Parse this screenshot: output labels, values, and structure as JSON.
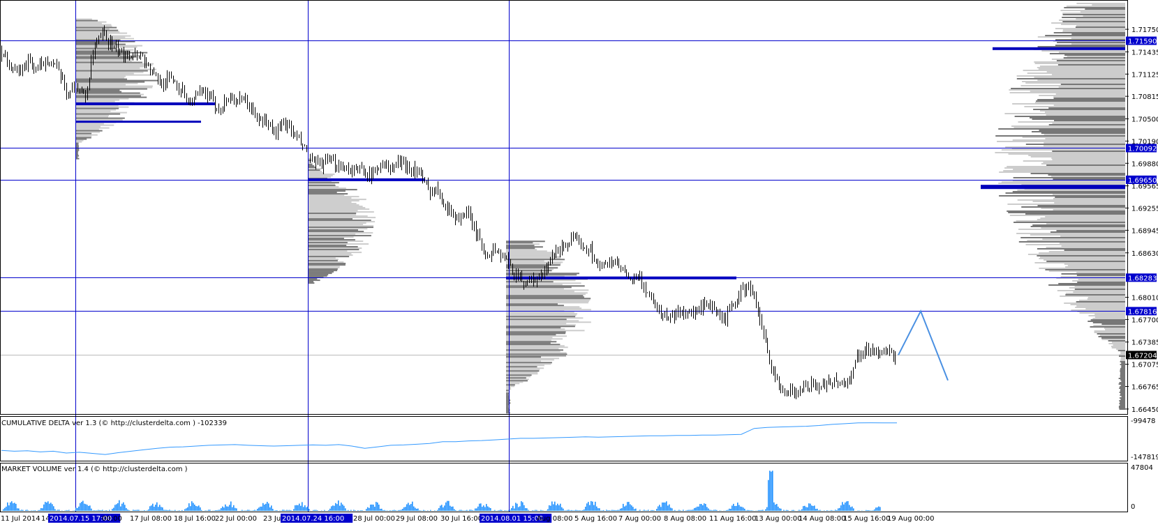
{
  "chart_data": [
    {
      "type": "candlestick",
      "name": "price",
      "yaxis": {
        "ticks": [
          1.7175,
          1.71435,
          1.71125,
          1.70815,
          1.705,
          1.7019,
          1.6988,
          1.69565,
          1.69255,
          1.68945,
          1.6863,
          1.6801,
          1.677,
          1.67385,
          1.67075,
          1.66765,
          1.6645
        ],
        "tick_labels": [
          "1.71750",
          "1.71435",
          "1.71125",
          "1.70815",
          "1.70500",
          "1.70190",
          "1.69880",
          "1.69565",
          "1.69255",
          "1.68945",
          "1.68630",
          "1.68010",
          "1.67700",
          "1.67385",
          "1.67075",
          "1.66765",
          "1.66450"
        ],
        "range": [
          1.664,
          1.7212
        ]
      },
      "level_lines": [
        {
          "value": 1.7159,
          "label": "1.71590"
        },
        {
          "value": 1.70092,
          "label": "1.70092"
        },
        {
          "value": 1.6965,
          "label": "1.69650"
        },
        {
          "value": 1.68283,
          "label": "1.68283"
        },
        {
          "value": 1.67816,
          "label": "1.67816"
        }
      ],
      "current_price": {
        "value": 1.67204,
        "label": "1.67204"
      },
      "price_path": [
        1.7146,
        1.7128,
        1.7112,
        1.713,
        1.7118,
        1.7135,
        1.7121,
        1.7087,
        1.7095,
        1.708,
        1.7155,
        1.7168,
        1.7147,
        1.714,
        1.7142,
        1.7137,
        1.7113,
        1.71,
        1.7108,
        1.7092,
        1.7072,
        1.7085,
        1.7081,
        1.7063,
        1.708,
        1.7076,
        1.7072,
        1.705,
        1.7046,
        1.703,
        1.7045,
        1.7025,
        1.7009,
        1.6985,
        1.6988,
        1.6988,
        1.6985,
        1.6978,
        1.698,
        1.697,
        1.6988,
        1.698,
        1.699,
        1.6982,
        1.6975,
        1.695,
        1.6952,
        1.6925,
        1.691,
        1.692,
        1.689,
        1.686,
        1.6868,
        1.6855,
        1.6835,
        1.6823,
        1.6825,
        1.683,
        1.6858,
        1.6872,
        1.688,
        1.6875,
        1.6868,
        1.684,
        1.6852,
        1.6845,
        1.6825,
        1.6828,
        1.6808,
        1.6788,
        1.6772,
        1.6778,
        1.6782,
        1.6778,
        1.679,
        1.6782,
        1.677,
        1.679,
        1.6812,
        1.6812,
        1.676,
        1.6696,
        1.6676,
        1.667,
        1.6672,
        1.668,
        1.6675,
        1.6685,
        1.6683,
        1.668,
        1.672,
        1.6728,
        1.6726,
        1.6722,
        1.672
      ],
      "projection": [
        1.67204,
        1.67816,
        1.6685
      ],
      "session_lines_x": [
        "2014.07.15 17:00",
        "2014.07.24 16:00",
        "2014.08.01 15:00"
      ]
    },
    {
      "type": "line",
      "title": "CUMULATIVE DELTA ver 1.3 (© http://clusterdelta.com ) -102339",
      "yaxis": {
        "tick_labels": [
          "-99478",
          "-147819"
        ],
        "range": [
          -153000,
          -96000
        ]
      },
      "values": [
        -140000,
        -141000,
        -140500,
        -142000,
        -141000,
        -143500,
        -142500,
        -144000,
        -145500,
        -143000,
        -141000,
        -139000,
        -137000,
        -135500,
        -135000,
        -134000,
        -133000,
        -132500,
        -132000,
        -133000,
        -133500,
        -134000,
        -133500,
        -133000,
        -132500,
        -133000,
        -132000,
        -134000,
        -137000,
        -135000,
        -133000,
        -132500,
        -131500,
        -130500,
        -128000,
        -128000,
        -127000,
        -126500,
        -125500,
        -124500,
        -123500,
        -123500,
        -123000,
        -122500,
        -122000,
        -121500,
        -121800,
        -121500,
        -121000,
        -120500,
        -120000,
        -120000,
        -119500,
        -119500,
        -119000,
        -119000,
        -118500,
        -118000,
        -110000,
        -108500,
        -108000,
        -107500,
        -107000,
        -106000,
        -104500,
        -103500,
        -102500,
        -102300,
        -102500,
        -102339
      ]
    },
    {
      "type": "bar",
      "title": "MARKET VOLUME ver 1.4 (© http://clusterdelta.com )",
      "yaxis": {
        "tick_labels": [
          "47804",
          "0"
        ],
        "range": [
          0,
          47804
        ]
      },
      "series_color": "#1e90ff"
    }
  ],
  "x_axis": {
    "ticks": [
      {
        "label": "11 Jul 2014",
        "highlight": false
      },
      {
        "label": "14",
        "highlight": false
      },
      {
        "label": "2014.07.15 17:00",
        "highlight": true
      },
      {
        "label": "00:00",
        "highlight": false
      },
      {
        "label": "17 Jul 08:00",
        "highlight": false
      },
      {
        "label": "18 Jul 16:00",
        "highlight": false
      },
      {
        "label": "22 Jul 00:00",
        "highlight": false
      },
      {
        "label": "23 Jul",
        "highlight": false
      },
      {
        "label": "2014.07.24 16:00",
        "highlight": true
      },
      {
        "label": "28 Jul 00:00",
        "highlight": false
      },
      {
        "label": "29 Jul 08:00",
        "highlight": false
      },
      {
        "label": "30 Jul 16:00",
        "highlight": false
      },
      {
        "label": "2014.08.01 15:00",
        "highlight": true
      },
      {
        "label": "Aug 08:00",
        "highlight": false
      },
      {
        "label": "5 Aug 16:00",
        "highlight": false
      },
      {
        "label": "7 Aug 00:00",
        "highlight": false
      },
      {
        "label": "8 Aug 08:00",
        "highlight": false
      },
      {
        "label": "11 Aug 16:00",
        "highlight": false
      },
      {
        "label": "13 Aug 00:00",
        "highlight": false
      },
      {
        "label": "14 Aug 08:00",
        "highlight": false
      },
      {
        "label": "15 Aug 16:00",
        "highlight": false
      },
      {
        "label": "19 Aug 00:00",
        "highlight": false
      }
    ]
  },
  "colors": {
    "level_line": "#0000cc",
    "label_fill": "#0000cc",
    "bar": "#000000",
    "profile_dark": "#777777",
    "profile_light": "#cccccc",
    "poc": "#0000bb",
    "indicator_line": "#3399ff",
    "projection": "#4a90e2",
    "current_label": "#000000"
  }
}
